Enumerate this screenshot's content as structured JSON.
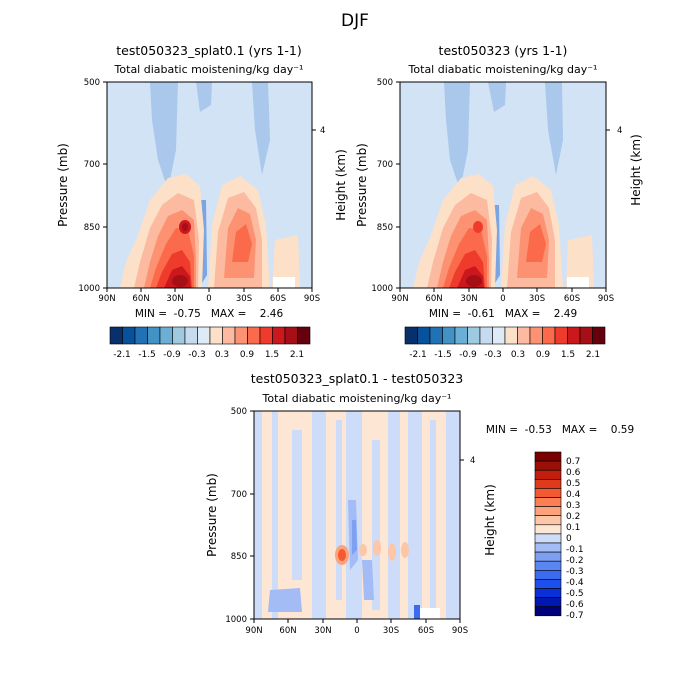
{
  "season": "DJF",
  "colors": {
    "diverging": [
      "#08306b",
      "#08519c",
      "#2171b5",
      "#4292c6",
      "#6baed6",
      "#9ecae1",
      "#c6dbef",
      "#deebf7",
      "#fde0c8",
      "#fcbba1",
      "#fc9272",
      "#fb6a4a",
      "#ef3b2c",
      "#cb181d",
      "#a50f15",
      "#67000d"
    ],
    "diff_fill": [
      "#00007a",
      "#0018b0",
      "#0b2fd6",
      "#1e50ee",
      "#3b6cf0",
      "#5b86f2",
      "#7ea0f3",
      "#a3bcf5",
      "#cddcf8",
      "#fde6d4",
      "#fcc6a8",
      "#fca37e",
      "#fb7f55",
      "#f45a32",
      "#e03a1c",
      "#c21e0e",
      "#9a0f06",
      "#7a0000"
    ]
  },
  "chart_data": [
    {
      "type": "heatmap",
      "title": "test050323_splat0.1 (yrs 1-1)",
      "subtitle": "Total diabatic moistening/kg day⁻¹",
      "ylabel": "Pressure (mb)",
      "ylabel_right": "Height (km)",
      "x_ticks": [
        "90N",
        "60N",
        "30N",
        "0",
        "30S",
        "60S",
        "90S"
      ],
      "y_ticks": [
        "500",
        "700",
        "850",
        "1000"
      ],
      "y_right_ticks": [
        "4"
      ],
      "min": -0.75,
      "max": 2.46,
      "stats_text": "MIN =  -0.75   MAX =    2.46",
      "colorbar_labels": [
        "-2.1",
        "-1.5",
        "-0.9",
        "-0.3",
        "0.3",
        "0.9",
        "1.5",
        "2.1"
      ]
    },
    {
      "type": "heatmap",
      "title": "test050323 (yrs 1-1)",
      "subtitle": "Total diabatic moistening/kg day⁻¹",
      "ylabel": "Pressure (mb)",
      "ylabel_right": "Height (km)",
      "x_ticks": [
        "90N",
        "60N",
        "30N",
        "0",
        "30S",
        "60S",
        "90S"
      ],
      "y_ticks": [
        "500",
        "700",
        "850",
        "1000"
      ],
      "y_right_ticks": [
        "4"
      ],
      "min": -0.61,
      "max": 2.49,
      "stats_text": "MIN =  -0.61   MAX =    2.49",
      "colorbar_labels": [
        "-2.1",
        "-1.5",
        "-0.9",
        "-0.3",
        "0.3",
        "0.9",
        "1.5",
        "2.1"
      ]
    },
    {
      "type": "heatmap",
      "title": "test050323_splat0.1 - test050323",
      "subtitle": "Total diabatic moistening/kg day⁻¹",
      "ylabel": "Pressure (mb)",
      "ylabel_right": "Height (km)",
      "x_ticks": [
        "90N",
        "60N",
        "30N",
        "0",
        "30S",
        "60S",
        "90S"
      ],
      "y_ticks": [
        "500",
        "700",
        "850",
        "1000"
      ],
      "y_right_ticks": [
        "4"
      ],
      "min": -0.53,
      "max": 0.59,
      "stats_text": "MIN =  -0.53   MAX =    0.59",
      "colorbar_labels": [
        "0.7",
        "0.6",
        "0.5",
        "0.4",
        "0.3",
        "0.2",
        "0.1",
        "0",
        "-0.1",
        "-0.2",
        "-0.3",
        "-0.4",
        "-0.5",
        "-0.6",
        "-0.7"
      ]
    }
  ]
}
